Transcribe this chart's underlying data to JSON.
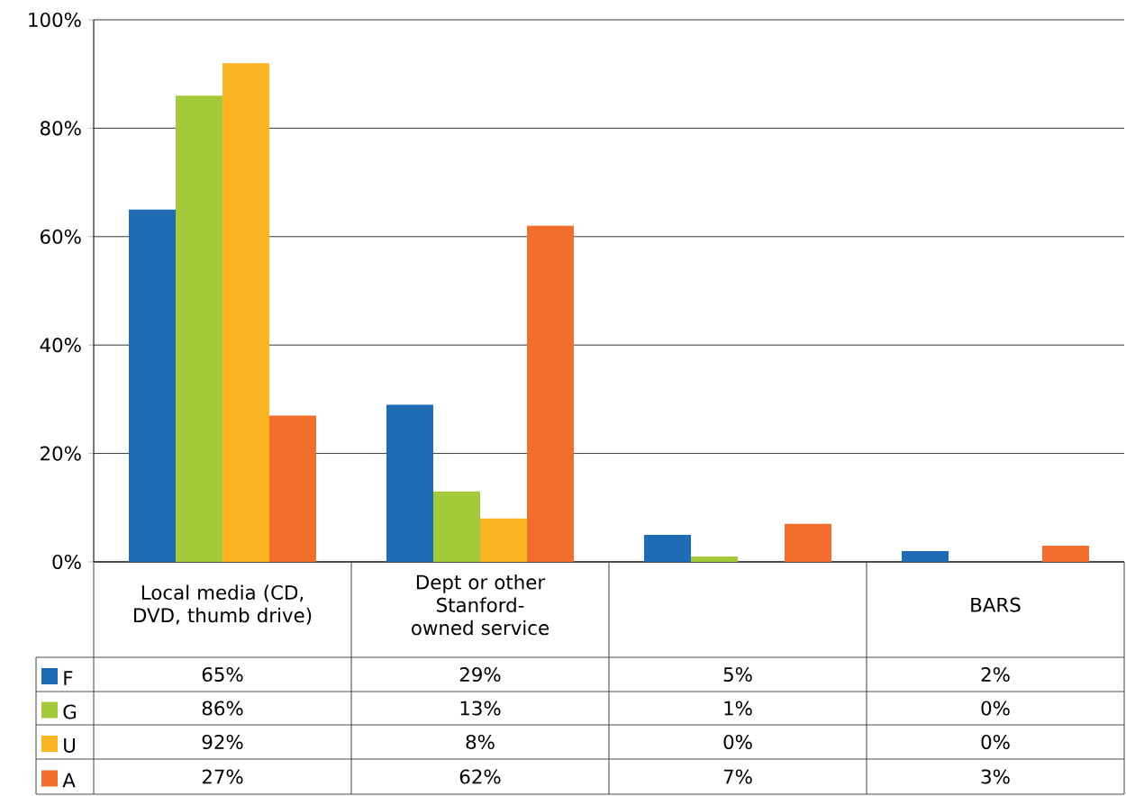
{
  "chart_data": {
    "type": "bar",
    "categories": [
      "Local media (CD, DVD, thumb drive)",
      "Dept or other Stanford-owned service",
      null,
      "BARS"
    ],
    "series": [
      {
        "name": "F",
        "color": "#1f6bb5",
        "values": [
          65,
          29,
          5,
          2
        ],
        "value_labels": [
          "65%",
          "29%",
          "5%",
          "2%"
        ]
      },
      {
        "name": "G",
        "color": "#a4c93a",
        "values": [
          86,
          13,
          1,
          0
        ],
        "value_labels": [
          "86%",
          "13%",
          "1%",
          "0%"
        ]
      },
      {
        "name": "U",
        "color": "#fbb522",
        "values": [
          92,
          8,
          0,
          0
        ],
        "value_labels": [
          "92%",
          "8%",
          "0%",
          "0%"
        ]
      },
      {
        "name": "A",
        "color": "#f26e2c",
        "values": [
          27,
          62,
          7,
          3
        ],
        "value_labels": [
          "27%",
          "62%",
          "7%",
          "3%"
        ]
      }
    ],
    "ylim": [
      0,
      100
    ],
    "yticks": [
      {
        "value": 0,
        "label": "0%"
      },
      {
        "value": 20,
        "label": "20%"
      },
      {
        "value": 40,
        "label": "40%"
      },
      {
        "value": 60,
        "label": "60%"
      },
      {
        "value": 80,
        "label": "80%"
      },
      {
        "value": 100,
        "label": "100%"
      }
    ],
    "grid": "y",
    "legend": "bottom left"
  }
}
